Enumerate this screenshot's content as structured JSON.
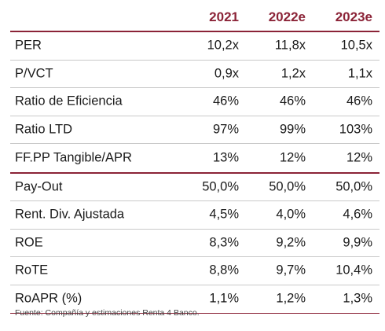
{
  "header": {
    "col1": "2021",
    "col2": "2022e",
    "col3": "2023e"
  },
  "group1": [
    {
      "label": "PER",
      "v1": "10,2x",
      "v2": "11,8x",
      "v3": "10,5x"
    },
    {
      "label": "P/VCT",
      "v1": "0,9x",
      "v2": "1,2x",
      "v3": "1,1x"
    },
    {
      "label": "Ratio de Eficiencia",
      "v1": "46%",
      "v2": "46%",
      "v3": "46%"
    },
    {
      "label": "Ratio LTD",
      "v1": "97%",
      "v2": "99%",
      "v3": "103%"
    },
    {
      "label": "FF.PP Tangible/APR",
      "v1": "13%",
      "v2": "12%",
      "v3": "12%"
    }
  ],
  "group2": [
    {
      "label": "Pay-Out",
      "v1": "50,0%",
      "v2": "50,0%",
      "v3": "50,0%"
    },
    {
      "label": "Rent. Div. Ajustada",
      "v1": "4,5%",
      "v2": "4,0%",
      "v3": "4,6%"
    },
    {
      "label": "ROE",
      "v1": "8,3%",
      "v2": "9,2%",
      "v3": "9,9%"
    },
    {
      "label": "RoTE",
      "v1": "8,8%",
      "v2": "9,7%",
      "v3": "10,4%"
    },
    {
      "label": "RoAPR (%)",
      "v1": "1,1%",
      "v2": "1,2%",
      "v3": "1,3%"
    }
  ],
  "footnote": "Fuente: Compañía y estimaciones Renta 4 Banco.",
  "colors": {
    "accent": "#8b2337",
    "text": "#1a1a1a",
    "row_rule": "#c9c9c9"
  }
}
